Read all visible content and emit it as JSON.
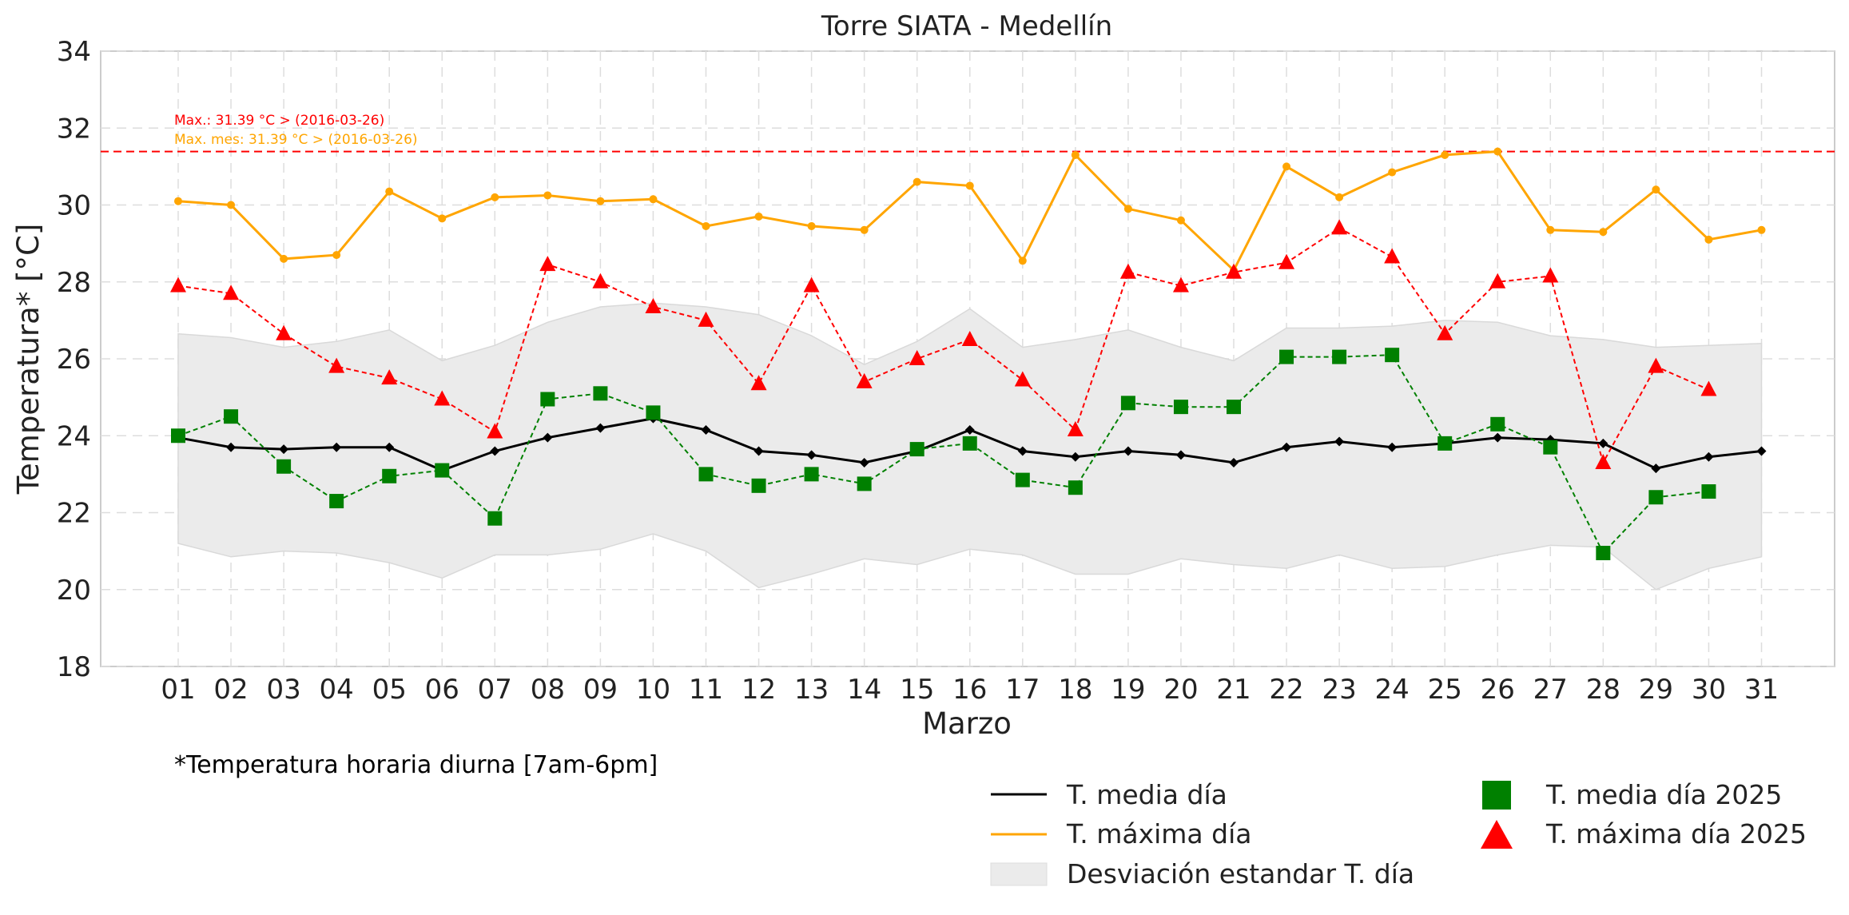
{
  "chart_data": {
    "type": "line",
    "title": "Torre SIATA - Medellín",
    "xlabel": "Marzo",
    "ylabel": "Temperatura* [°C]",
    "ylim": [
      18,
      34
    ],
    "yticks": [
      "18",
      "20",
      "22",
      "24",
      "26",
      "28",
      "30",
      "32",
      "34"
    ],
    "categories": [
      "01",
      "02",
      "03",
      "04",
      "05",
      "06",
      "07",
      "08",
      "09",
      "10",
      "11",
      "12",
      "13",
      "14",
      "15",
      "16",
      "17",
      "18",
      "19",
      "20",
      "21",
      "22",
      "23",
      "24",
      "25",
      "26",
      "27",
      "28",
      "29",
      "30",
      "31"
    ],
    "grid": true,
    "legend_position": "bottom-right",
    "footnote": "*Temperatura horaria diurna [7am-6pm]",
    "reference_line": {
      "value": 31.39,
      "color": "#ff0000"
    },
    "annotations": {
      "max": "Max.: 31.39 °C  >  (2016-03-26)",
      "max_month": "Max. mes: 31.39 °C  >  (2016-03-26)"
    },
    "series": [
      {
        "name": "T. media día",
        "color": "#000000",
        "values": [
          23.95,
          23.7,
          23.65,
          23.7,
          23.7,
          23.1,
          23.6,
          23.95,
          24.2,
          24.45,
          24.15,
          23.6,
          23.5,
          23.3,
          23.6,
          24.15,
          23.6,
          23.45,
          23.6,
          23.5,
          23.3,
          23.7,
          23.85,
          23.7,
          23.8,
          23.95,
          23.9,
          23.8,
          23.15,
          23.45,
          23.6
        ]
      },
      {
        "name": "T. máxima día",
        "color": "#ffa500",
        "values": [
          30.1,
          30.0,
          28.6,
          28.7,
          30.35,
          29.65,
          30.2,
          30.25,
          30.1,
          30.15,
          29.45,
          29.7,
          29.45,
          29.35,
          30.6,
          30.5,
          28.55,
          31.3,
          29.9,
          29.6,
          28.3,
          31.0,
          30.2,
          30.85,
          31.3,
          31.39,
          29.35,
          29.3,
          30.4,
          29.1,
          29.35
        ]
      },
      {
        "name": "T. media día 2025",
        "color": "#008000",
        "values": [
          24.0,
          24.5,
          23.2,
          22.3,
          22.95,
          23.1,
          21.85,
          24.95,
          25.1,
          24.6,
          23.0,
          22.7,
          23.0,
          22.75,
          23.65,
          23.8,
          22.85,
          22.65,
          24.85,
          24.75,
          24.75,
          26.05,
          26.05,
          26.1,
          23.8,
          24.3,
          23.7,
          20.95,
          22.4,
          22.55,
          null
        ]
      },
      {
        "name": "T. máxima día 2025",
        "color": "#ff0000",
        "values": [
          27.9,
          27.7,
          26.65,
          25.8,
          25.5,
          24.95,
          24.1,
          28.45,
          28.0,
          27.35,
          27.0,
          25.35,
          27.9,
          25.4,
          26.0,
          26.5,
          25.45,
          24.15,
          28.25,
          27.9,
          28.25,
          28.5,
          29.4,
          28.65,
          26.65,
          28.0,
          28.15,
          23.3,
          25.8,
          25.2,
          null
        ]
      }
    ],
    "band": {
      "name": "Desviación estandar T. día",
      "color": "#ebebeb",
      "upper": [
        26.65,
        26.55,
        26.3,
        26.45,
        26.75,
        25.95,
        26.35,
        26.95,
        27.35,
        27.45,
        27.35,
        27.15,
        26.6,
        25.85,
        26.45,
        27.3,
        26.3,
        26.5,
        26.75,
        26.3,
        25.95,
        26.8,
        26.8,
        26.85,
        27.0,
        26.95,
        26.6,
        26.5,
        26.3,
        26.35,
        26.4
      ],
      "lower": [
        21.2,
        20.85,
        21.0,
        20.95,
        20.7,
        20.3,
        20.9,
        20.9,
        21.05,
        21.45,
        21.0,
        20.05,
        20.4,
        20.8,
        20.65,
        21.05,
        20.9,
        20.4,
        20.4,
        20.8,
        20.65,
        20.55,
        20.9,
        20.55,
        20.6,
        20.9,
        21.15,
        21.1,
        20.0,
        20.55,
        20.85
      ]
    }
  }
}
